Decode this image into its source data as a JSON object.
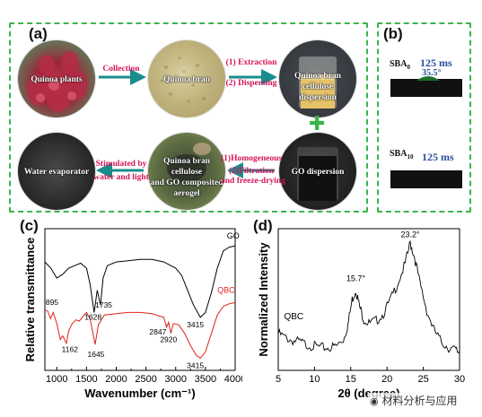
{
  "panel_a": {
    "letter": "(a)",
    "circles": {
      "quinoa_plants": "Quinoa plants",
      "quinoa_bran": "Quinoa bran",
      "dispersion": [
        "Quinoa bran cellulose",
        "dispersion"
      ],
      "go_dispersion": "GO dispersion",
      "aerogel": [
        "Quinoa bran cellulose",
        "and GO composited",
        "aerogel"
      ],
      "water_evaporator": "Water evaporator"
    },
    "arrows": {
      "collection": "Collection",
      "extraction": [
        "(1) Extraction",
        "(2) Dispersing"
      ],
      "homogeneous": [
        "(1)Homogeneous",
        "(2)Filtration",
        "and freeze-drying"
      ],
      "stimulated": [
        "Stimulated by",
        "water and light"
      ]
    },
    "plus": "✚"
  },
  "panel_b": {
    "letter": "(b)",
    "items": [
      {
        "sample_main": "SBA",
        "sample_sub": "0",
        "time": "125 ms",
        "angle": "35.5°"
      },
      {
        "sample_main": "SBA",
        "sample_sub": "10",
        "time": "125 ms"
      }
    ]
  },
  "chart_data": [
    {
      "panel": "(c)",
      "type": "line",
      "xlabel": "Wavenumber (cm⁻¹)",
      "ylabel": "Relative transmittance",
      "xlim": [
        800,
        4000
      ],
      "xticks": [
        1000,
        1500,
        2000,
        2500,
        3000,
        3500,
        4000
      ],
      "series": [
        {
          "name": "GO",
          "color": "#000000",
          "points": [
            [
              800,
              0.63
            ],
            [
              900,
              0.58
            ],
            [
              1000,
              0.5
            ],
            [
              1100,
              0.53
            ],
            [
              1200,
              0.58
            ],
            [
              1300,
              0.6
            ],
            [
              1400,
              0.62
            ],
            [
              1500,
              0.58
            ],
            [
              1560,
              0.45
            ],
            [
              1628,
              0.22
            ],
            [
              1680,
              0.4
            ],
            [
              1735,
              0.28
            ],
            [
              1780,
              0.5
            ],
            [
              1850,
              0.6
            ],
            [
              2000,
              0.63
            ],
            [
              2200,
              0.64
            ],
            [
              2400,
              0.65
            ],
            [
              2600,
              0.65
            ],
            [
              2800,
              0.63
            ],
            [
              3000,
              0.58
            ],
            [
              3100,
              0.52
            ],
            [
              3200,
              0.4
            ],
            [
              3300,
              0.28
            ],
            [
              3415,
              0.18
            ],
            [
              3500,
              0.22
            ],
            [
              3600,
              0.38
            ],
            [
              3700,
              0.58
            ],
            [
              3800,
              0.72
            ],
            [
              3900,
              0.75
            ],
            [
              4000,
              0.76
            ]
          ]
        },
        {
          "name": "QBC",
          "color": "#e0201b",
          "points": [
            [
              800,
              0.24
            ],
            [
              850,
              0.23
            ],
            [
              895,
              0.17
            ],
            [
              940,
              0.22
            ],
            [
              1000,
              0.13
            ],
            [
              1060,
              0.0
            ],
            [
              1100,
              0.03
            ],
            [
              1162,
              -0.03
            ],
            [
              1200,
              0.07
            ],
            [
              1260,
              0.13
            ],
            [
              1320,
              0.16
            ],
            [
              1380,
              0.15
            ],
            [
              1430,
              0.18
            ],
            [
              1500,
              0.22
            ],
            [
              1560,
              0.17
            ],
            [
              1645,
              -0.04
            ],
            [
              1700,
              0.12
            ],
            [
              1800,
              0.2
            ],
            [
              2000,
              0.21
            ],
            [
              2200,
              0.22
            ],
            [
              2400,
              0.22
            ],
            [
              2600,
              0.21
            ],
            [
              2800,
              0.18
            ],
            [
              2847,
              0.1
            ],
            [
              2880,
              0.14
            ],
            [
              2920,
              0.05
            ],
            [
              2960,
              0.13
            ],
            [
              3050,
              0.12
            ],
            [
              3150,
              0.05
            ],
            [
              3250,
              -0.05
            ],
            [
              3350,
              -0.13
            ],
            [
              3415,
              -0.15
            ],
            [
              3500,
              -0.1
            ],
            [
              3600,
              0.05
            ],
            [
              3700,
              0.2
            ],
            [
              3800,
              0.27
            ],
            [
              3900,
              0.29
            ],
            [
              4000,
              0.3
            ]
          ]
        }
      ],
      "annotations": [
        "895",
        "1162",
        "1645",
        "1628",
        "1735",
        "2847",
        "2920",
        "3415",
        "3415"
      ]
    },
    {
      "panel": "(d)",
      "type": "line",
      "xlabel": "2θ (degree)",
      "ylabel": "Normalized Intensity",
      "xlim": [
        5,
        30
      ],
      "xticks": [
        5,
        10,
        15,
        20,
        25,
        30
      ],
      "series": [
        {
          "name": "QBC",
          "color": "#000000",
          "points": [
            [
              5,
              0.36
            ],
            [
              6,
              0.33
            ],
            [
              7,
              0.31
            ],
            [
              8,
              0.3
            ],
            [
              9,
              0.28
            ],
            [
              10,
              0.27
            ],
            [
              11,
              0.26
            ],
            [
              12,
              0.26
            ],
            [
              13,
              0.27
            ],
            [
              14,
              0.32
            ],
            [
              14.6,
              0.42
            ],
            [
              15.2,
              0.6
            ],
            [
              15.7,
              0.67
            ],
            [
              16.2,
              0.55
            ],
            [
              16.8,
              0.46
            ],
            [
              17.5,
              0.43
            ],
            [
              18.5,
              0.45
            ],
            [
              19.5,
              0.5
            ],
            [
              20.5,
              0.6
            ],
            [
              21.5,
              0.72
            ],
            [
              22.5,
              0.85
            ],
            [
              23.2,
              1.0
            ],
            [
              23.8,
              0.9
            ],
            [
              24.5,
              0.72
            ],
            [
              25.5,
              0.52
            ],
            [
              26.5,
              0.38
            ],
            [
              27.5,
              0.3
            ],
            [
              28.5,
              0.26
            ],
            [
              29.5,
              0.24
            ],
            [
              30,
              0.23
            ]
          ]
        }
      ],
      "annotations": [
        "15.7°",
        "23.2°"
      ]
    }
  ],
  "watermark": "材料分析与应用"
}
